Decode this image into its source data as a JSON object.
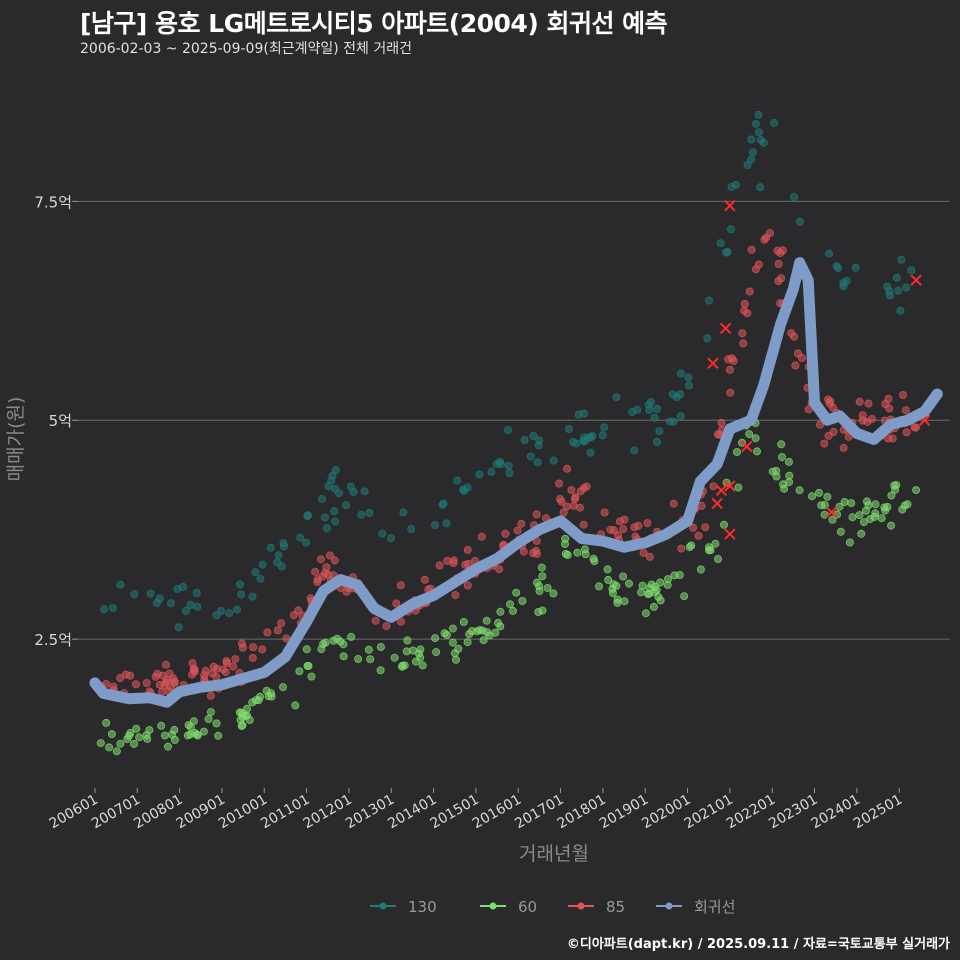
{
  "title": "[남구] 용호 LG메트로시티5 아파트(2004) 회귀선 예측",
  "subtitle": "2006-02-03 ~ 2025-09-09(최근계약일) 전체 거래건",
  "source": "©디아파트(dapt.kr) / 2025.09.11 / 자료=국토교통부 실거래가",
  "chart_data": {
    "type": "scatter",
    "xlabel": "거래년월",
    "ylabel": "매매가(원)",
    "x_ticks": [
      "200601",
      "200701",
      "200801",
      "200901",
      "201001",
      "201101",
      "201201",
      "201301",
      "201401",
      "201501",
      "201601",
      "201701",
      "201801",
      "201901",
      "202001",
      "202101",
      "202201",
      "202301",
      "202401",
      "202501"
    ],
    "y_ticks": [
      {
        "value": 2.5,
        "label": "2.5억"
      },
      {
        "value": 5,
        "label": "5억"
      },
      {
        "value": 7.5,
        "label": "7.5억"
      }
    ],
    "ylim": [
      0.8,
      9.0
    ],
    "xlim": [
      2005.6,
      2026.2
    ],
    "grid": "horizontal",
    "legend_position": "bottom",
    "colors": {
      "130": "#1f7a78",
      "60": "#7fdc6e",
      "85": "#e0555a",
      "회귀선": "#7f9bc8"
    },
    "series": [
      {
        "name": "130",
        "anchors": [
          [
            2006.1,
            3.0
          ],
          [
            2008.0,
            2.9
          ],
          [
            2009.0,
            2.8
          ],
          [
            2010.0,
            3.2
          ],
          [
            2011.0,
            3.8
          ],
          [
            2011.8,
            4.2
          ],
          [
            2012.5,
            3.9
          ],
          [
            2013.0,
            3.8
          ],
          [
            2014.0,
            4.0
          ],
          [
            2015.0,
            4.3
          ],
          [
            2016.0,
            4.6
          ],
          [
            2016.8,
            4.8
          ],
          [
            2018.0,
            4.9
          ],
          [
            2019.0,
            5.0
          ],
          [
            2020.0,
            5.2
          ],
          [
            2020.5,
            6.2
          ],
          [
            2021.0,
            7.5
          ],
          [
            2021.5,
            8.2
          ],
          [
            2022.5,
            7.8
          ],
          [
            2023.0,
            7.0
          ],
          [
            2024.0,
            6.5
          ],
          [
            2025.0,
            6.5
          ],
          [
            2025.5,
            6.6
          ]
        ],
        "count": 150
      },
      {
        "name": "60",
        "anchors": [
          [
            2006.1,
            1.4
          ],
          [
            2007.0,
            1.4
          ],
          [
            2008.0,
            1.45
          ],
          [
            2009.0,
            1.5
          ],
          [
            2010.0,
            1.8
          ],
          [
            2010.8,
            2.0
          ],
          [
            2011.5,
            2.5
          ],
          [
            2012.0,
            2.4
          ],
          [
            2012.8,
            2.2
          ],
          [
            2013.0,
            2.2
          ],
          [
            2014.0,
            2.4
          ],
          [
            2015.0,
            2.6
          ],
          [
            2016.0,
            3.0
          ],
          [
            2016.8,
            3.2
          ],
          [
            2017.3,
            3.6
          ],
          [
            2018.0,
            3.1
          ],
          [
            2019.0,
            3.0
          ],
          [
            2020.0,
            3.3
          ],
          [
            2020.7,
            3.6
          ],
          [
            2021.3,
            4.8
          ],
          [
            2021.5,
            4.9
          ],
          [
            2023.0,
            4.0
          ],
          [
            2024.0,
            3.9
          ],
          [
            2025.0,
            4.0
          ],
          [
            2025.5,
            4.0
          ]
        ],
        "count": 230
      },
      {
        "name": "85",
        "anchors": [
          [
            2006.1,
            1.9
          ],
          [
            2007.0,
            1.95
          ],
          [
            2008.0,
            2.0
          ],
          [
            2009.0,
            2.1
          ],
          [
            2010.0,
            2.4
          ],
          [
            2011.0,
            2.8
          ],
          [
            2011.5,
            3.3
          ],
          [
            2012.0,
            3.2
          ],
          [
            2012.8,
            2.8
          ],
          [
            2013.5,
            2.9
          ],
          [
            2014.0,
            3.1
          ],
          [
            2015.0,
            3.3
          ],
          [
            2016.0,
            3.6
          ],
          [
            2016.8,
            3.9
          ],
          [
            2017.3,
            4.2
          ],
          [
            2018.0,
            3.7
          ],
          [
            2019.0,
            3.7
          ],
          [
            2020.0,
            3.8
          ],
          [
            2020.6,
            4.2
          ],
          [
            2021.0,
            5.5
          ],
          [
            2021.5,
            6.5
          ],
          [
            2022.0,
            7.0
          ],
          [
            2022.5,
            6.0
          ],
          [
            2023.0,
            5.1
          ],
          [
            2024.0,
            5.0
          ],
          [
            2025.0,
            5.0
          ],
          [
            2025.6,
            5.1
          ]
        ],
        "count": 290
      },
      {
        "name": "회귀선",
        "type": "line",
        "points": [
          [
            2006.0,
            2.0
          ],
          [
            2006.2,
            1.88
          ],
          [
            2006.8,
            1.82
          ],
          [
            2007.3,
            1.83
          ],
          [
            2007.7,
            1.78
          ],
          [
            2008.0,
            1.9
          ],
          [
            2008.5,
            1.95
          ],
          [
            2009.0,
            1.98
          ],
          [
            2009.5,
            2.05
          ],
          [
            2010.0,
            2.12
          ],
          [
            2010.5,
            2.3
          ],
          [
            2011.0,
            2.7
          ],
          [
            2011.4,
            3.05
          ],
          [
            2011.8,
            3.18
          ],
          [
            2012.2,
            3.12
          ],
          [
            2012.6,
            2.85
          ],
          [
            2013.0,
            2.75
          ],
          [
            2013.5,
            2.9
          ],
          [
            2014.0,
            3.0
          ],
          [
            2014.5,
            3.15
          ],
          [
            2015.0,
            3.3
          ],
          [
            2015.5,
            3.42
          ],
          [
            2016.0,
            3.6
          ],
          [
            2016.5,
            3.75
          ],
          [
            2017.0,
            3.85
          ],
          [
            2017.5,
            3.65
          ],
          [
            2018.0,
            3.62
          ],
          [
            2018.5,
            3.55
          ],
          [
            2019.0,
            3.6
          ],
          [
            2019.5,
            3.7
          ],
          [
            2020.0,
            3.85
          ],
          [
            2020.3,
            4.3
          ],
          [
            2020.7,
            4.5
          ],
          [
            2021.0,
            4.9
          ],
          [
            2021.5,
            5.0
          ],
          [
            2021.8,
            5.4
          ],
          [
            2022.2,
            6.1
          ],
          [
            2022.5,
            6.5
          ],
          [
            2022.65,
            6.8
          ],
          [
            2022.85,
            6.6
          ],
          [
            2023.0,
            5.2
          ],
          [
            2023.3,
            5.0
          ],
          [
            2023.6,
            5.05
          ],
          [
            2024.0,
            4.85
          ],
          [
            2024.4,
            4.78
          ],
          [
            2024.8,
            4.95
          ],
          [
            2025.2,
            5.0
          ],
          [
            2025.6,
            5.1
          ],
          [
            2025.9,
            5.3
          ]
        ]
      }
    ],
    "highlighted_points": [
      [
        2020.6,
        5.65
      ],
      [
        2020.7,
        4.05
      ],
      [
        2020.8,
        4.2
      ],
      [
        2020.9,
        6.05
      ],
      [
        2021.0,
        3.7
      ],
      [
        2021.0,
        7.45
      ],
      [
        2021.0,
        4.25
      ],
      [
        2021.4,
        4.7
      ],
      [
        2023.4,
        3.95
      ],
      [
        2025.4,
        6.6
      ],
      [
        2025.6,
        5.0
      ]
    ]
  }
}
